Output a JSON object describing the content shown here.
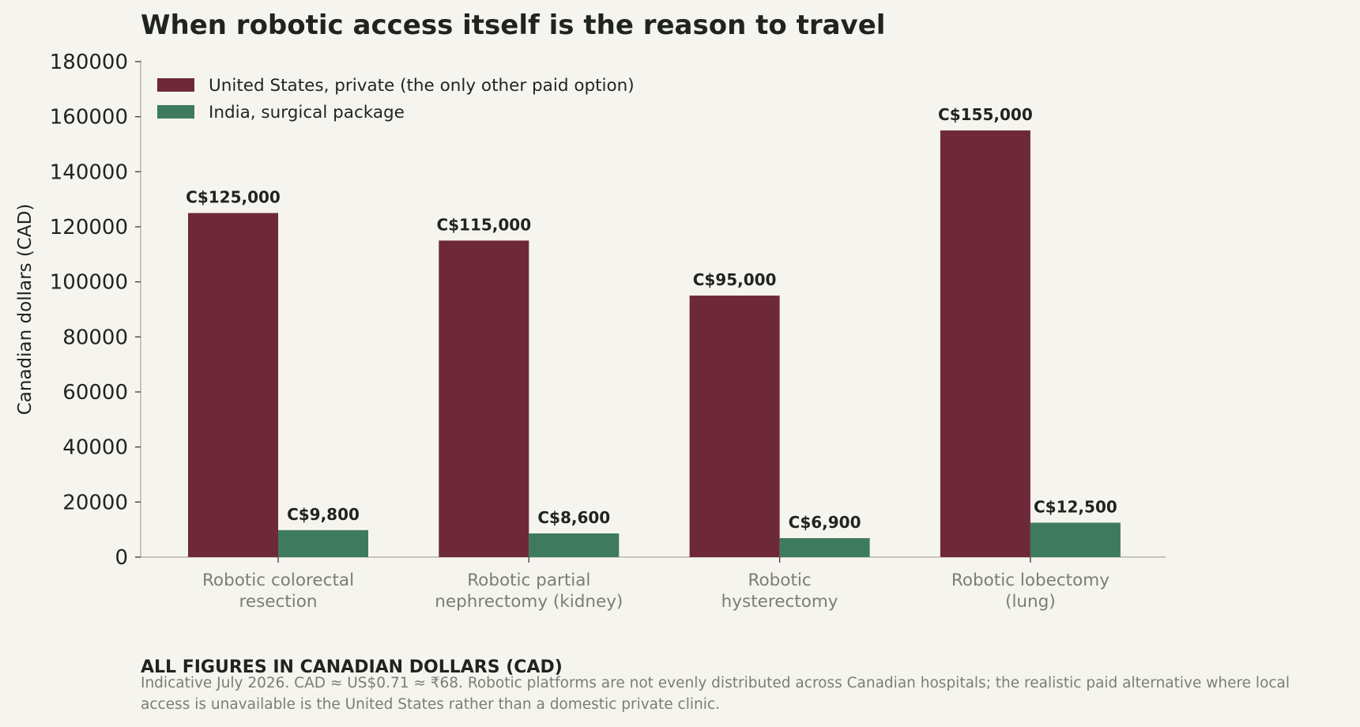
{
  "chart_data": {
    "type": "bar",
    "title": "When robotic access itself is the reason to travel",
    "ylabel": "Canadian dollars (CAD)",
    "xlabel": "",
    "ylim": [
      0,
      180000
    ],
    "yticks": [
      "0",
      "20000",
      "40000",
      "60000",
      "80000",
      "100000",
      "120000",
      "140000",
      "160000",
      "180000"
    ],
    "grid": false,
    "legend_position": "top-left",
    "categories": [
      [
        "Robotic colorectal",
        "resection"
      ],
      [
        "Robotic partial",
        "nephrectomy (kidney)"
      ],
      [
        "Robotic",
        "hysterectomy"
      ],
      [
        "Robotic lobectomy",
        "(lung)"
      ]
    ],
    "series": [
      {
        "name": "United States, private (the only other paid option)",
        "color": "#6d2839",
        "values": [
          125000,
          115000,
          95000,
          155000
        ],
        "labels": [
          "C$125,000",
          "C$115,000",
          "C$95,000",
          "C$155,000"
        ]
      },
      {
        "name": "India, surgical package",
        "color": "#3e7a5f",
        "values": [
          9800,
          8600,
          6900,
          12500
        ],
        "labels": [
          "C$9,800",
          "C$8,600",
          "C$6,900",
          "C$12,500"
        ]
      }
    ]
  },
  "footer": {
    "heading": "ALL FIGURES IN CANADIAN DOLLARS (CAD)",
    "note": "Indicative July 2026. CAD ≈ US$0.71 ≈ ₹68. Robotic platforms are not evenly distributed across Canadian hospitals; the realistic paid alternative where local access is unavailable is the United States rather than a domestic private clinic."
  }
}
